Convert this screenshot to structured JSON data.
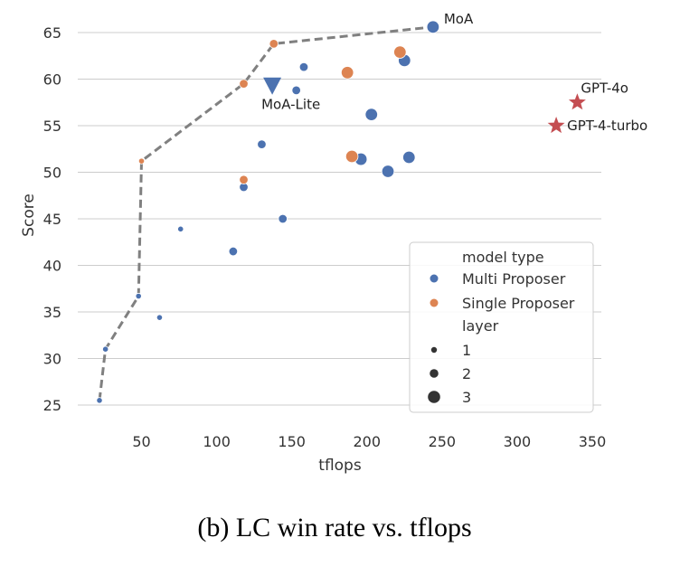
{
  "chart_data": {
    "type": "scatter",
    "xlabel": "tflops",
    "ylabel": "Score",
    "xlim": [
      15,
      355
    ],
    "ylim": [
      24.5,
      67
    ],
    "xticks": [
      50,
      100,
      150,
      200,
      250,
      300,
      350
    ],
    "yticks": [
      25,
      30,
      35,
      40,
      45,
      50,
      55,
      60,
      65
    ],
    "grid": "horizontal",
    "caption": "(b) LC win rate vs. tflops",
    "colors": {
      "multi": "#4c72b0",
      "single": "#dd8452",
      "reference": "#c44e52",
      "frontier": "#808080",
      "grid": "#cccccc"
    },
    "points": [
      {
        "x": 244,
        "y": 65.6,
        "type": "multi",
        "layer": 3
      },
      {
        "x": 225,
        "y": 62.0,
        "type": "multi",
        "layer": 3
      },
      {
        "x": 158,
        "y": 61.3,
        "type": "multi",
        "layer": 2
      },
      {
        "x": 153,
        "y": 58.8,
        "type": "multi",
        "layer": 2
      },
      {
        "x": 203,
        "y": 56.2,
        "type": "multi",
        "layer": 3
      },
      {
        "x": 130,
        "y": 53.0,
        "type": "multi",
        "layer": 2
      },
      {
        "x": 196,
        "y": 51.4,
        "type": "multi",
        "layer": 3
      },
      {
        "x": 228,
        "y": 51.6,
        "type": "multi",
        "layer": 3
      },
      {
        "x": 214,
        "y": 50.1,
        "type": "multi",
        "layer": 3
      },
      {
        "x": 118,
        "y": 48.4,
        "type": "multi",
        "layer": 2
      },
      {
        "x": 144,
        "y": 45.0,
        "type": "multi",
        "layer": 2
      },
      {
        "x": 76,
        "y": 43.9,
        "type": "multi",
        "layer": 1
      },
      {
        "x": 111,
        "y": 41.5,
        "type": "multi",
        "layer": 2
      },
      {
        "x": 48,
        "y": 36.7,
        "type": "multi",
        "layer": 1
      },
      {
        "x": 62,
        "y": 34.4,
        "type": "multi",
        "layer": 1
      },
      {
        "x": 26,
        "y": 31.0,
        "type": "multi",
        "layer": 1
      },
      {
        "x": 22,
        "y": 25.5,
        "type": "multi",
        "layer": 1
      },
      {
        "x": 138,
        "y": 63.8,
        "type": "single",
        "layer": 2
      },
      {
        "x": 222,
        "y": 62.9,
        "type": "single",
        "layer": 3
      },
      {
        "x": 187,
        "y": 60.7,
        "type": "single",
        "layer": 3
      },
      {
        "x": 118,
        "y": 59.5,
        "type": "single",
        "layer": 2
      },
      {
        "x": 190,
        "y": 51.7,
        "type": "single",
        "layer": 3
      },
      {
        "x": 118,
        "y": 49.2,
        "type": "single",
        "layer": 2
      },
      {
        "x": 50,
        "y": 51.2,
        "type": "single",
        "layer": 1
      }
    ],
    "frontier": [
      {
        "x": 22,
        "y": 25.5
      },
      {
        "x": 26,
        "y": 31.0
      },
      {
        "x": 48,
        "y": 36.7
      },
      {
        "x": 50,
        "y": 51.2
      },
      {
        "x": 118,
        "y": 59.5
      },
      {
        "x": 138,
        "y": 63.8
      },
      {
        "x": 244,
        "y": 65.6
      }
    ],
    "special_points": [
      {
        "label": "MoA-Lite",
        "x": 137,
        "y": 59.3,
        "marker": "triangle-down",
        "color": "#4c72b0",
        "label_pos": "below"
      },
      {
        "label": "GPT-4o",
        "x": 340,
        "y": 57.5,
        "marker": "star",
        "color": "#c44e52",
        "label_pos": "above-right"
      },
      {
        "label": "GPT-4-turbo",
        "x": 326,
        "y": 55.0,
        "marker": "star",
        "color": "#c44e52",
        "label_pos": "right"
      }
    ],
    "annotations": [
      {
        "text": "MoA",
        "x": 244,
        "y": 65.6
      }
    ],
    "legend": {
      "placement": "lower-right",
      "hue_title": "model type",
      "hue_entries": [
        {
          "label": "Multi Proposer",
          "type": "multi"
        },
        {
          "label": "Single Proposer",
          "type": "single"
        }
      ],
      "size_title": "layer",
      "size_entries": [
        {
          "label": "1",
          "layer": 1
        },
        {
          "label": "2",
          "layer": 2
        },
        {
          "label": "3",
          "layer": 3
        }
      ]
    }
  }
}
